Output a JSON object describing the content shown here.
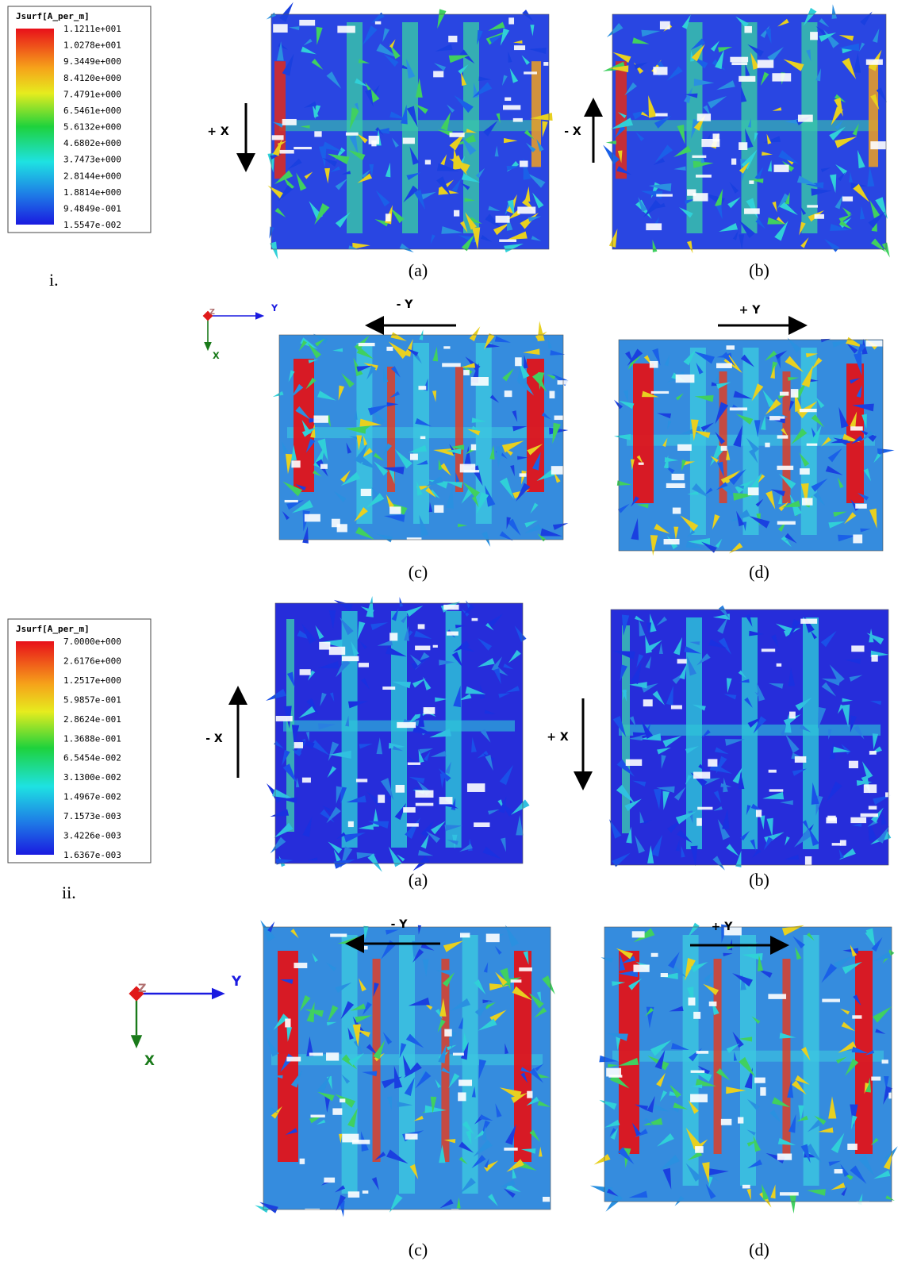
{
  "sections": [
    {
      "label": "i.",
      "legend": {
        "title": "Jsurf[A_per_m]",
        "labels": [
          "1.1211e+001",
          "1.0278e+001",
          "9.3449e+000",
          "8.4120e+000",
          "7.4791e+000",
          "6.5461e+000",
          "5.6132e+000",
          "4.6802e+000",
          "3.7473e+000",
          "2.8144e+000",
          "1.8814e+000",
          "9.4849e-001",
          "1.5547e-002"
        ]
      },
      "triad": {
        "z": "Z",
        "y": "Y",
        "x": "X"
      },
      "plots": [
        {
          "caption": "(a)",
          "direction": "+ X"
        },
        {
          "caption": "(b)",
          "direction": "- X"
        },
        {
          "caption": "(c)",
          "direction": "- Y"
        },
        {
          "caption": "(d)",
          "direction": "+ Y"
        }
      ]
    },
    {
      "label": "ii.",
      "legend": {
        "title": "Jsurf[A_per_m]",
        "labels": [
          "7.0000e+000",
          "2.6176e+000",
          "1.2517e+000",
          "5.9857e-001",
          "2.8624e-001",
          "1.3688e-001",
          "6.5454e-002",
          "3.1300e-002",
          "1.4967e-002",
          "7.1573e-003",
          "3.4226e-003",
          "1.6367e-003"
        ]
      },
      "triad": {
        "z": "Z",
        "y": "Y",
        "x": "X"
      },
      "plots": [
        {
          "caption": "(a)",
          "direction": "- X"
        },
        {
          "caption": "(b)",
          "direction": "+ X"
        },
        {
          "caption": "(c)",
          "direction": "- Y"
        },
        {
          "caption": "(d)",
          "direction": "+ Y"
        }
      ]
    }
  ]
}
